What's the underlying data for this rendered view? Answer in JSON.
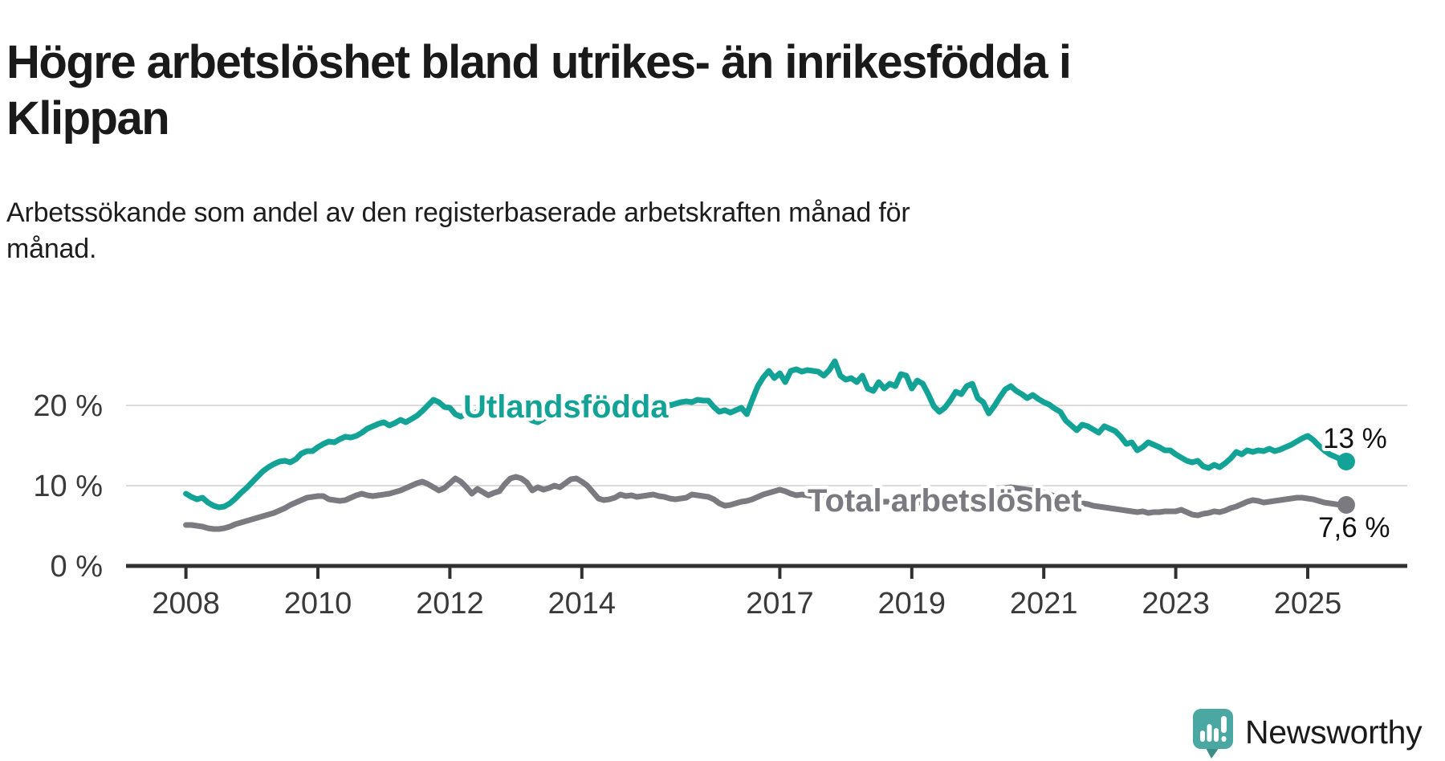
{
  "title": {
    "lines": [
      "Högre arbetslöshet bland utrikes- än inrikesfödda i",
      "Klippan"
    ],
    "full": "Högre arbetslöshet bland utrikes- än inrikesfödda i Klippan"
  },
  "subtitle": {
    "lines": [
      "Arbetssökande som andel av den registerbaserade arbetskraften månad för",
      "månad."
    ],
    "full": "Arbetssökande som andel av den registerbaserade arbetskraften månad för månad."
  },
  "branding": {
    "name": "Newsworthy",
    "icon": "newsworthy-speech-bubble-barchart-icon",
    "icon_color": "#4ba7a1",
    "icon_tail_color": "#3d8d87",
    "text_color": "#3e9d95"
  },
  "colors": {
    "background": "#ffffff",
    "title_text": "#1a1a1a",
    "axis_line": "#303030",
    "axis_text": "#3a3a3a",
    "gridline": "#dcdcdc",
    "value_label_text": "#111111",
    "series_teal": "#12a296",
    "series_gray": "#7a7a80"
  },
  "chart_data": {
    "type": "line",
    "unit": "%",
    "grid": "horizontal",
    "frequency_note": "monthly (månad för månad)",
    "x_axis": {
      "tick_years": [
        2008,
        2010,
        2012,
        2014,
        2017,
        2019,
        2021,
        2023,
        2025
      ],
      "start_year_decimal": 2008.0,
      "end_year_decimal": 2025.58
    },
    "y_axis": {
      "ticks": [
        {
          "value": 0,
          "label": "0 %"
        },
        {
          "value": 10,
          "label": "10 %"
        },
        {
          "value": 20,
          "label": "20 %"
        }
      ],
      "max_visible": 27
    },
    "series": [
      {
        "name": "Utlandsfödda",
        "color": "#12a296",
        "end_label": "13 %",
        "end_value": 13,
        "x_start": 2008.0,
        "x_step_months": 1,
        "values": [
          9.0,
          8.6,
          8.3,
          8.5,
          7.9,
          7.5,
          7.3,
          7.4,
          7.8,
          8.4,
          9.1,
          9.7,
          10.4,
          11.1,
          11.8,
          12.3,
          12.7,
          13.0,
          13.1,
          12.9,
          13.3,
          14.0,
          14.3,
          14.3,
          14.8,
          15.2,
          15.5,
          15.4,
          15.8,
          16.1,
          16.0,
          16.2,
          16.6,
          17.1,
          17.4,
          17.7,
          17.9,
          17.5,
          17.8,
          18.2,
          17.9,
          18.3,
          18.7,
          19.3,
          20.0,
          20.7,
          20.4,
          19.8,
          19.7,
          18.9,
          18.6,
          19.0,
          18.9,
          19.2,
          18.8,
          19.4,
          20.0,
          20.2,
          20.3,
          20.0,
          19.6,
          19.1,
          18.6,
          18.1,
          17.9,
          18.3,
          18.8,
          19.3,
          19.7,
          20.1,
          20.4,
          20.5,
          20.6,
          20.2,
          19.9,
          20.1,
          19.8,
          20.0,
          20.3,
          20.1,
          20.4,
          20.6,
          20.3,
          20.1,
          20.2,
          19.9,
          20.1,
          20.3,
          20.0,
          20.2,
          20.4,
          20.5,
          20.4,
          20.7,
          20.6,
          20.6,
          19.8,
          19.2,
          19.4,
          19.1,
          19.4,
          19.7,
          18.9,
          20.7,
          22.4,
          23.5,
          24.3,
          23.4,
          24.0,
          22.9,
          24.3,
          24.5,
          24.2,
          24.4,
          24.3,
          24.2,
          23.7,
          24.4,
          25.5,
          23.7,
          23.2,
          23.4,
          22.9,
          23.7,
          22.1,
          21.8,
          22.9,
          22.1,
          22.7,
          22.4,
          23.9,
          23.7,
          22.1,
          23.1,
          22.7,
          21.4,
          19.9,
          19.2,
          19.7,
          20.6,
          21.7,
          21.4,
          22.4,
          22.7,
          20.9,
          20.4,
          19.0,
          19.9,
          21.0,
          22.0,
          22.4,
          21.8,
          21.4,
          20.9,
          21.3,
          20.8,
          20.4,
          20.1,
          19.6,
          19.2,
          18.1,
          17.5,
          16.9,
          17.6,
          17.4,
          17.0,
          16.6,
          17.4,
          17.1,
          16.8,
          16.1,
          15.2,
          15.4,
          14.4,
          14.8,
          15.4,
          15.1,
          14.8,
          14.4,
          14.4,
          13.9,
          13.5,
          13.1,
          12.9,
          13.1,
          12.4,
          12.2,
          12.6,
          12.3,
          12.8,
          13.4,
          14.2,
          13.9,
          14.4,
          14.2,
          14.4,
          14.3,
          14.6,
          14.3,
          14.5,
          14.8,
          15.1,
          15.5,
          15.9,
          16.2,
          15.7,
          15.0,
          14.4,
          13.9,
          13.6,
          13.3,
          13.0
        ]
      },
      {
        "name": "Total arbetslöshet",
        "color": "#7a7a80",
        "end_label": "7,6 %",
        "end_value": 7.6,
        "x_start": 2008.0,
        "x_step_months": 1,
        "values": [
          5.1,
          5.1,
          5.0,
          4.9,
          4.7,
          4.6,
          4.6,
          4.7,
          4.9,
          5.2,
          5.4,
          5.6,
          5.8,
          6.0,
          6.2,
          6.4,
          6.6,
          6.9,
          7.2,
          7.6,
          7.9,
          8.2,
          8.5,
          8.6,
          8.7,
          8.7,
          8.3,
          8.2,
          8.1,
          8.2,
          8.5,
          8.8,
          9.0,
          8.8,
          8.7,
          8.8,
          8.9,
          9.0,
          9.2,
          9.4,
          9.7,
          10.0,
          10.3,
          10.5,
          10.2,
          9.8,
          9.4,
          9.7,
          10.3,
          10.9,
          10.5,
          9.8,
          9.0,
          9.6,
          9.2,
          8.8,
          9.1,
          9.3,
          10.2,
          10.9,
          11.1,
          10.9,
          10.4,
          9.4,
          9.8,
          9.5,
          9.7,
          10.0,
          9.8,
          10.3,
          10.8,
          10.9,
          10.5,
          10.0,
          9.2,
          8.4,
          8.2,
          8.3,
          8.5,
          8.9,
          8.7,
          8.8,
          8.6,
          8.7,
          8.8,
          8.9,
          8.7,
          8.6,
          8.4,
          8.3,
          8.4,
          8.5,
          8.9,
          8.8,
          8.7,
          8.6,
          8.3,
          7.8,
          7.5,
          7.6,
          7.8,
          8.0,
          8.1,
          8.3,
          8.6,
          8.9,
          9.1,
          9.3,
          9.5,
          9.3,
          9.0,
          8.8,
          8.9,
          8.8,
          8.7,
          8.6,
          8.5,
          8.5,
          8.6,
          8.5,
          8.4,
          8.3,
          8.2,
          8.1,
          8.0,
          7.9,
          7.9,
          8.0,
          8.0,
          8.1,
          8.1,
          8.0,
          8.0,
          7.9,
          7.9,
          7.8,
          7.8,
          7.9,
          8.0,
          8.1,
          8.2,
          8.3,
          8.3,
          8.4,
          8.4,
          8.6,
          8.9,
          9.3,
          9.5,
          9.7,
          9.8,
          9.7,
          9.6,
          9.5,
          9.4,
          9.2,
          9.1,
          8.9,
          8.7,
          8.5,
          8.3,
          8.1,
          8.0,
          7.8,
          7.7,
          7.5,
          7.4,
          7.3,
          7.2,
          7.1,
          7.0,
          6.9,
          6.8,
          6.7,
          6.8,
          6.6,
          6.7,
          6.7,
          6.8,
          6.8,
          6.8,
          7.0,
          6.7,
          6.4,
          6.3,
          6.5,
          6.6,
          6.8,
          6.7,
          6.9,
          7.2,
          7.4,
          7.7,
          8.0,
          8.2,
          8.1,
          7.9,
          8.0,
          8.1,
          8.2,
          8.3,
          8.4,
          8.5,
          8.5,
          8.4,
          8.3,
          8.1,
          7.9,
          7.8,
          7.7,
          7.6,
          7.6
        ]
      }
    ]
  }
}
